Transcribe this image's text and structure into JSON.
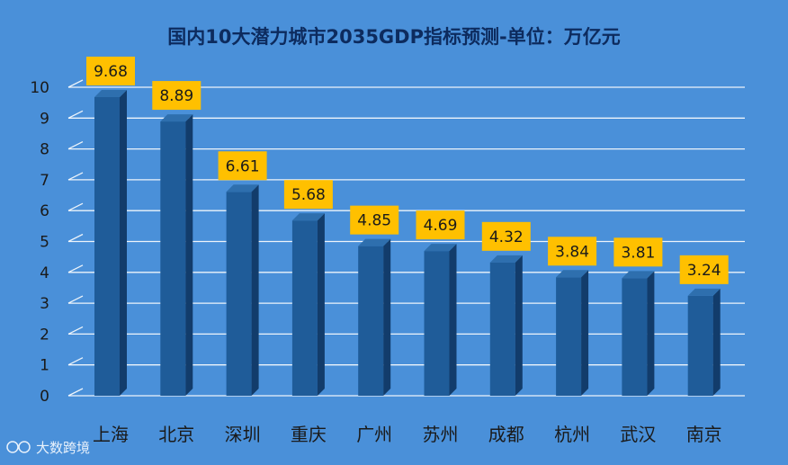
{
  "chart_data": {
    "type": "bar",
    "title": "国内10大潜力城市2035GDP指标预测-单位：万亿元",
    "categories": [
      "上海",
      "北京",
      "深圳",
      "重庆",
      "广州",
      "苏州",
      "成都",
      "杭州",
      "武汉",
      "南京"
    ],
    "values": [
      9.68,
      8.89,
      6.61,
      5.68,
      4.85,
      4.69,
      4.32,
      3.84,
      3.81,
      3.24
    ],
    "data_labels": [
      "9.68",
      "8.89",
      "6.61",
      "5.68",
      "4.85",
      "4.69",
      "4.32",
      "3.84",
      "3.81",
      "3.24"
    ],
    "y_ticks": [
      "0",
      "1",
      "2",
      "3",
      "4",
      "5",
      "6",
      "7",
      "8",
      "9",
      "10"
    ],
    "ylim": [
      0,
      10
    ],
    "grid": true,
    "colors": {
      "background": "#4a90d9",
      "bar_front": "#1f5c99",
      "bar_side": "#123c6b",
      "bar_top": "#2e6fae",
      "label_box": "#ffc000",
      "grid": "#ffffff",
      "title": "#0d2b5e"
    }
  },
  "watermark": "大数跨境"
}
